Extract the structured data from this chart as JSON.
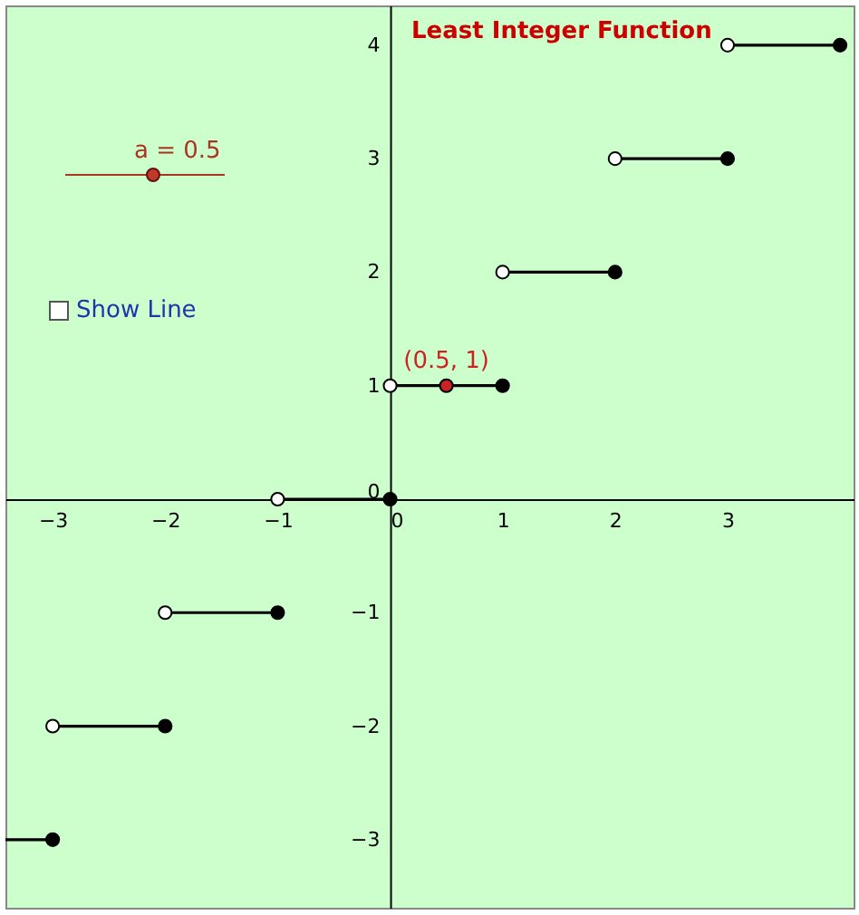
{
  "chart_data": {
    "type": "step",
    "title": "Least Integer Function",
    "xlim": [
      -3.42,
      4.12
    ],
    "ylim": [
      -3.6,
      4.35
    ],
    "xticks": [
      -3,
      -2,
      -1,
      0,
      1,
      2,
      3
    ],
    "yticks": [
      -3,
      -2,
      -1,
      0,
      1,
      2,
      3,
      4
    ],
    "grid": false,
    "line_style": "solid",
    "series": [
      {
        "color": "#000000",
        "x": [
          -3.42,
          -3
        ],
        "values": [
          -3,
          -3
        ]
      },
      {
        "color": "#000000",
        "x": [
          -3,
          -2
        ],
        "values": [
          -2,
          -2
        ]
      },
      {
        "color": "#000000",
        "x": [
          -2,
          -1
        ],
        "values": [
          -1,
          -1
        ]
      },
      {
        "color": "#000000",
        "x": [
          -1,
          0
        ],
        "values": [
          0,
          0
        ]
      },
      {
        "color": "#000000",
        "x": [
          0,
          1
        ],
        "values": [
          1,
          1
        ]
      },
      {
        "color": "#000000",
        "x": [
          1,
          2
        ],
        "values": [
          2,
          2
        ]
      },
      {
        "color": "#000000",
        "x": [
          2,
          3
        ],
        "values": [
          3,
          3
        ]
      },
      {
        "color": "#000000",
        "x": [
          3,
          4
        ],
        "values": [
          4,
          4
        ]
      },
      {
        "type": "scatter",
        "color": "#ffffff",
        "x": [
          -3,
          -2,
          -1,
          0,
          1,
          2,
          3
        ],
        "values": [
          -2,
          -1,
          0,
          1,
          2,
          3,
          4
        ]
      },
      {
        "type": "scatter",
        "color": "#000000",
        "x": [
          -3,
          -2,
          -1,
          0,
          1,
          2,
          3,
          4
        ],
        "values": [
          -3,
          -2,
          -1,
          0,
          1,
          2,
          3,
          4
        ]
      },
      {
        "type": "scatter",
        "color": "#cc2222",
        "x": [
          0.5
        ],
        "values": [
          1
        ]
      }
    ],
    "annotations": [
      "a = 0.5",
      "Show Line",
      {
        "text": "(0.5, 1)",
        "x": 0.5,
        "y": 1
      }
    ]
  }
}
